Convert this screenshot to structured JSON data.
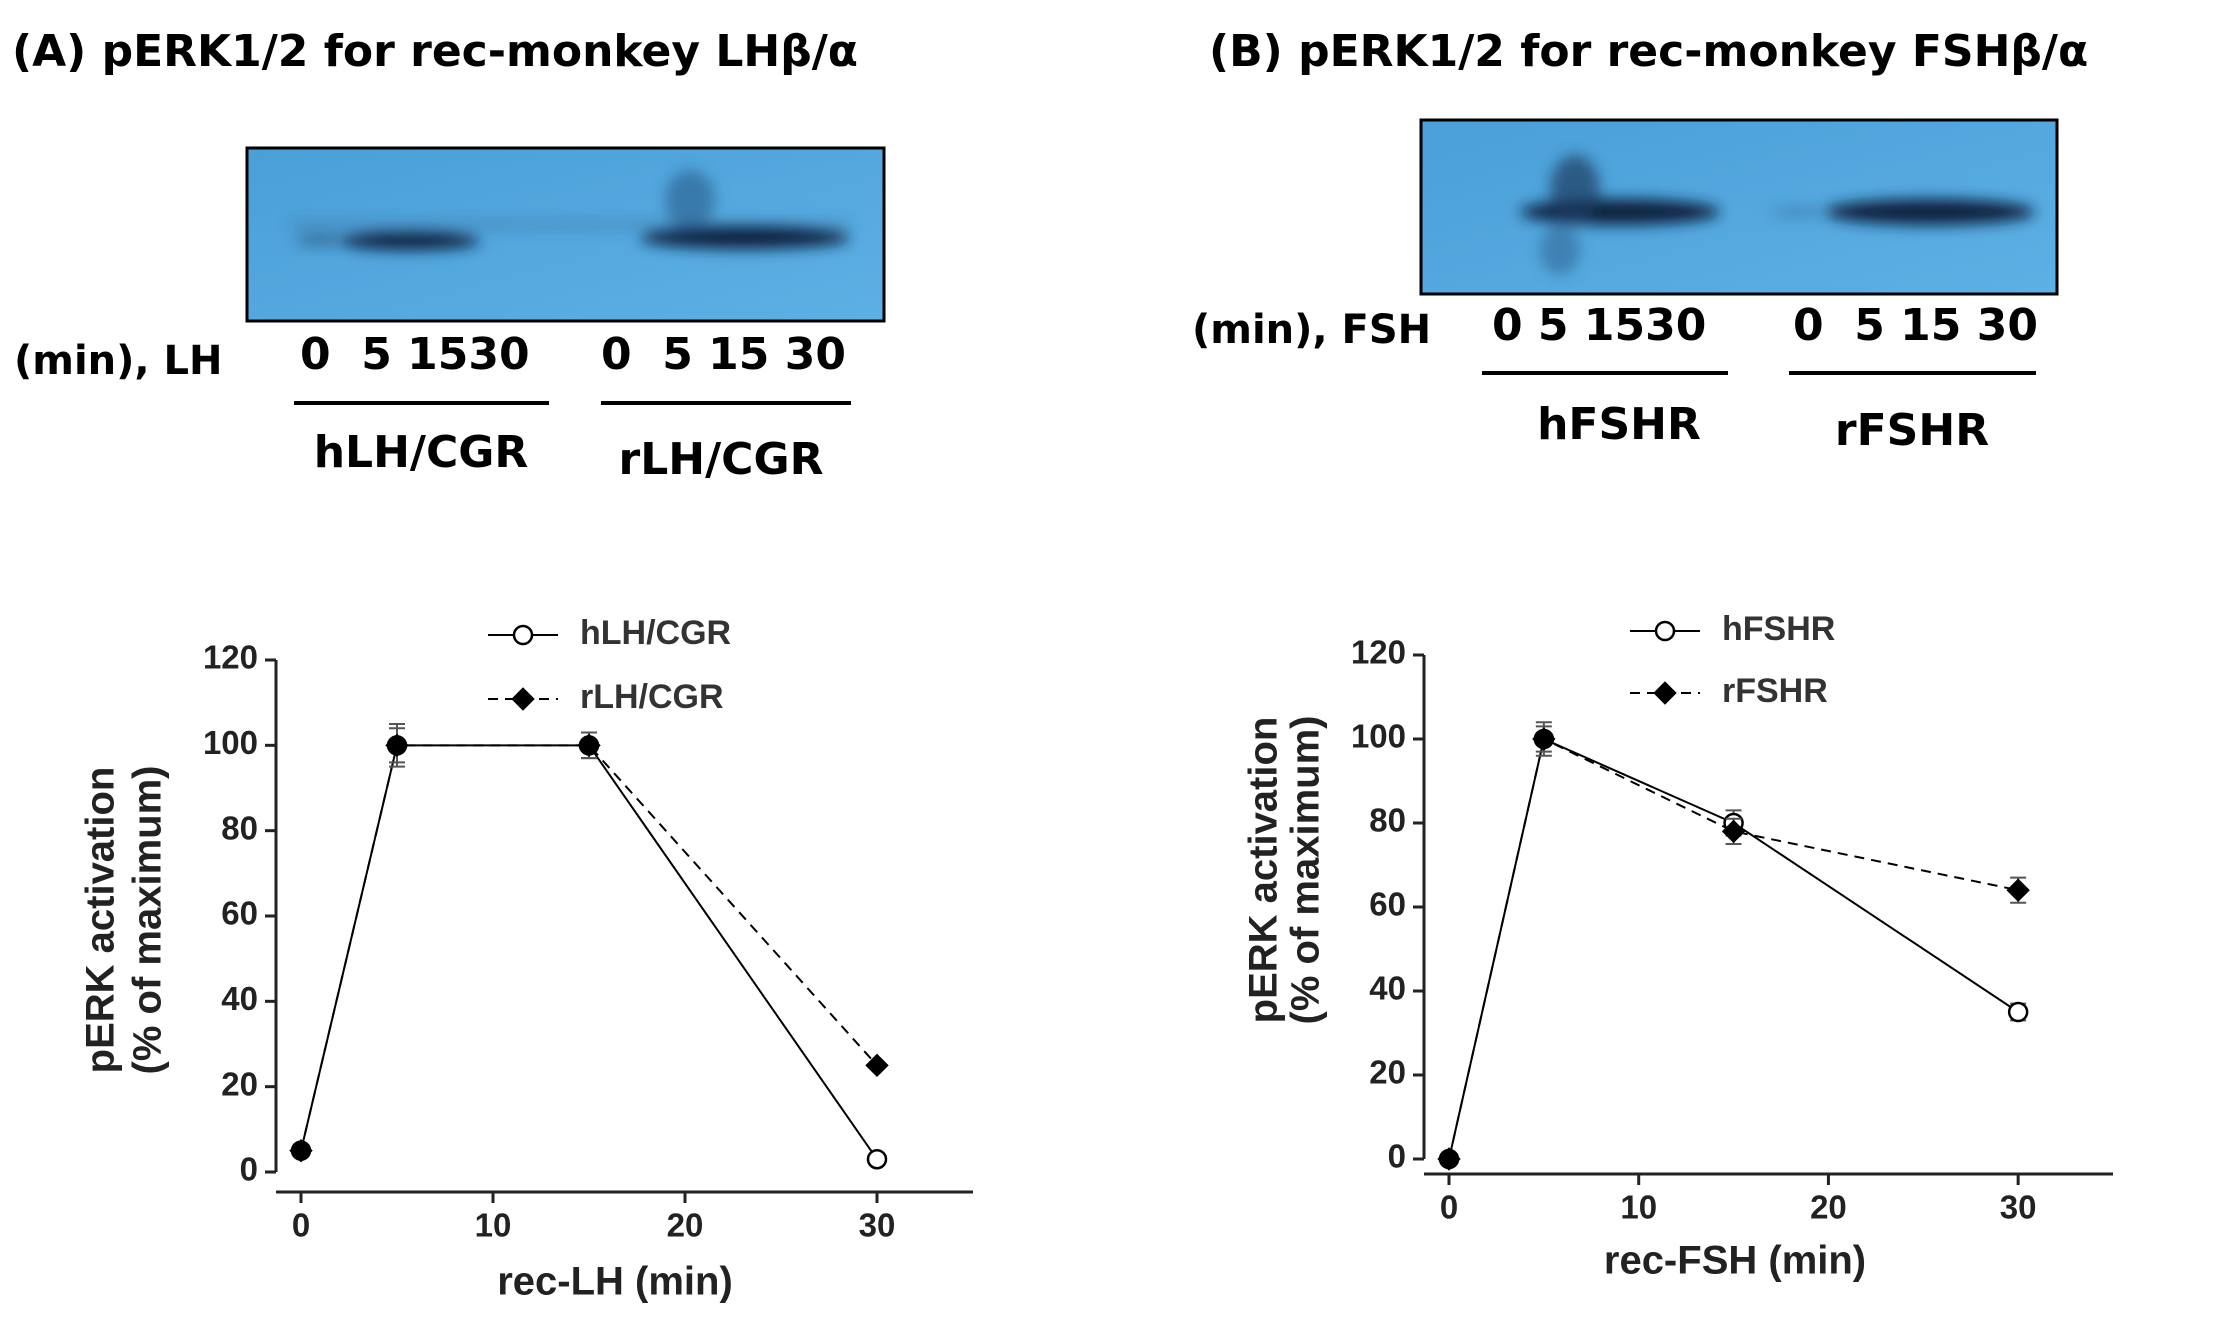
{
  "chart_data": [
    {
      "type": "line",
      "title": "(A) pERK1/2 for rec-monkey LHβ/α",
      "x": [
        0,
        5,
        15,
        30
      ],
      "series": [
        {
          "name": "hLH/CGR",
          "color": "#000000",
          "marker": "circle",
          "dashed": false,
          "values": [
            5,
            100,
            100,
            3
          ],
          "errors": [
            null,
            5,
            3,
            null
          ]
        },
        {
          "name": "rLH/CGR",
          "color": "#000000",
          "marker": "diamond",
          "dashed": true,
          "values": [
            5,
            100,
            100,
            25
          ],
          "errors": [
            null,
            4,
            3,
            null
          ]
        }
      ],
      "xlim": [
        0,
        35
      ],
      "xticks": [
        0,
        10,
        20,
        30
      ],
      "ylim": [
        0,
        120
      ],
      "yticks": [
        0,
        20,
        40,
        60,
        80,
        100,
        120
      ],
      "xlabel": "rec-LH (min)",
      "ylabel": [
        "pERK activation",
        "(% of maximum)"
      ]
    },
    {
      "type": "line",
      "title": "(B) pERK1/2 for rec-monkey FSHβ/α",
      "x": [
        0,
        5,
        15,
        30
      ],
      "series": [
        {
          "name": "hFSHR",
          "color": "#000000",
          "marker": "circle",
          "dashed": false,
          "values": [
            0,
            100,
            80,
            35
          ],
          "errors": [
            null,
            4,
            3,
            2
          ]
        },
        {
          "name": "rFSHR",
          "color": "#000000",
          "marker": "diamond",
          "dashed": true,
          "values": [
            0,
            100,
            78,
            64
          ],
          "errors": [
            null,
            3,
            3,
            3
          ]
        }
      ],
      "xlim": [
        0,
        35
      ],
      "xticks": [
        0,
        10,
        20,
        30
      ],
      "ylim": [
        0,
        120
      ],
      "yticks": [
        0,
        20,
        40,
        60,
        80,
        100,
        120
      ],
      "xlabel": "rec-FSH (min)",
      "ylabel": [
        "pERK activation",
        "(% of maximum)"
      ]
    }
  ],
  "blots": [
    {
      "prefix": "(min), LH",
      "groups": [
        {
          "lanes": "0  5 1530",
          "label": "hLH/CGR"
        },
        {
          "lanes": "0  5 15 30",
          "label": "rLH/CGR"
        }
      ]
    },
    {
      "prefix": "(min), FSH",
      "groups": [
        {
          "lanes": "0 5 1530",
          "label": "hFSHR"
        },
        {
          "lanes": "0  5 15 30",
          "label": "rFSHR"
        }
      ]
    }
  ]
}
